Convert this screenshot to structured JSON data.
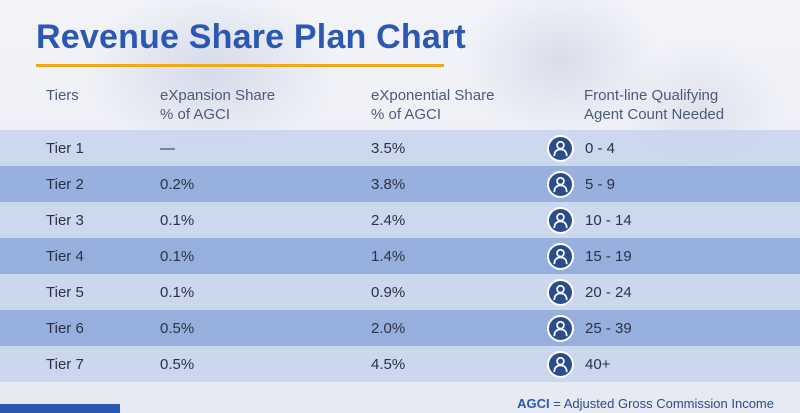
{
  "title": "Revenue Share Plan Chart",
  "colors": {
    "title": "#2a58b3",
    "accent_rule": "#f0a81b",
    "row_light": "#c6d3eb",
    "row_dark": "#92acdb",
    "icon": "#2a4c8c"
  },
  "headers": {
    "tiers": "Tiers",
    "expansion_line1": "eXpansion Share",
    "expansion_line2": "% of AGCI",
    "exponential_line1": "eXponential Share",
    "exponential_line2": "% of AGCI",
    "agents_line1": "Front-line Qualifying",
    "agents_line2": "Agent Count Needed"
  },
  "rows": [
    {
      "tier": "Tier 1",
      "expansion": "—",
      "exponential": "3.5%",
      "agents": "0 - 4"
    },
    {
      "tier": "Tier 2",
      "expansion": "0.2%",
      "exponential": "3.8%",
      "agents": "5 - 9"
    },
    {
      "tier": "Tier 3",
      "expansion": "0.1%",
      "exponential": "2.4%",
      "agents": "10 - 14"
    },
    {
      "tier": "Tier 4",
      "expansion": "0.1%",
      "exponential": "1.4%",
      "agents": "15 - 19"
    },
    {
      "tier": "Tier 5",
      "expansion": "0.1%",
      "exponential": "0.9%",
      "agents": "20 - 24"
    },
    {
      "tier": "Tier 6",
      "expansion": "0.5%",
      "exponential": "2.0%",
      "agents": "25 - 39"
    },
    {
      "tier": "Tier 7",
      "expansion": "0.5%",
      "exponential": "4.5%",
      "agents": "40+"
    }
  ],
  "row_icon": "person-icon",
  "footnote": {
    "abbr": "AGCI",
    "definition": " = Adjusted Gross Commission Income"
  }
}
